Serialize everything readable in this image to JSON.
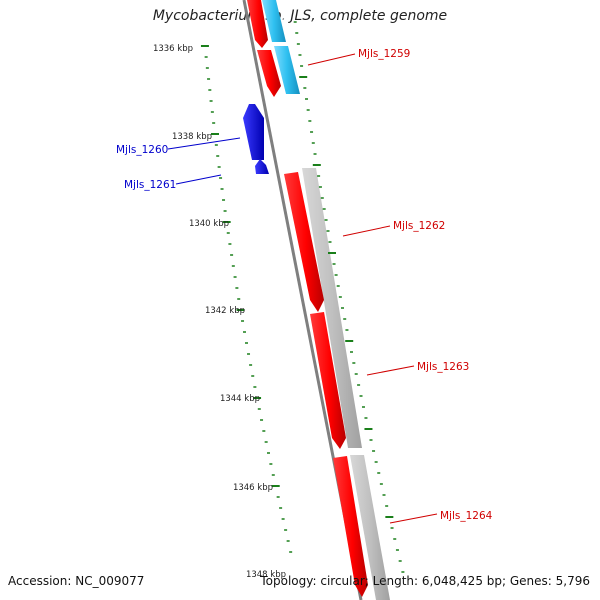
{
  "title": "Mycobacterium sp. JLS, complete genome",
  "footer": {
    "accession": "Accession: NC_009077",
    "summary": "Topology: circular; Length: 6,048,425 bp; Genes: 5,796"
  },
  "colors": {
    "forward_gene": "#ff0000",
    "reverse_gene": "#0000ee",
    "rna_gene": "#33c8f0",
    "feature_track": "#bdbdbd",
    "backbone": "#7f7f7f",
    "tick": "#1a7f1a",
    "label_red": "#d00000",
    "label_blue": "#0000cc"
  },
  "scale": {
    "unit": "kbp",
    "major_ticks": [
      {
        "label": "1336 kbp"
      },
      {
        "label": "1338 kbp"
      },
      {
        "label": "1340 kbp"
      },
      {
        "label": "1342 kbp"
      },
      {
        "label": "1344 kbp"
      },
      {
        "label": "1346 kbp"
      },
      {
        "label": "1348 kbp"
      }
    ]
  },
  "genes": [
    {
      "label": "Mjls_1259",
      "strand": "forward"
    },
    {
      "label": "Mjls_1260",
      "strand": "reverse"
    },
    {
      "label": "Mjls_1261",
      "strand": "reverse"
    },
    {
      "label": "Mjls_1262",
      "strand": "forward"
    },
    {
      "label": "Mjls_1263",
      "strand": "forward"
    },
    {
      "label": "Mjls_1264",
      "strand": "forward"
    }
  ]
}
